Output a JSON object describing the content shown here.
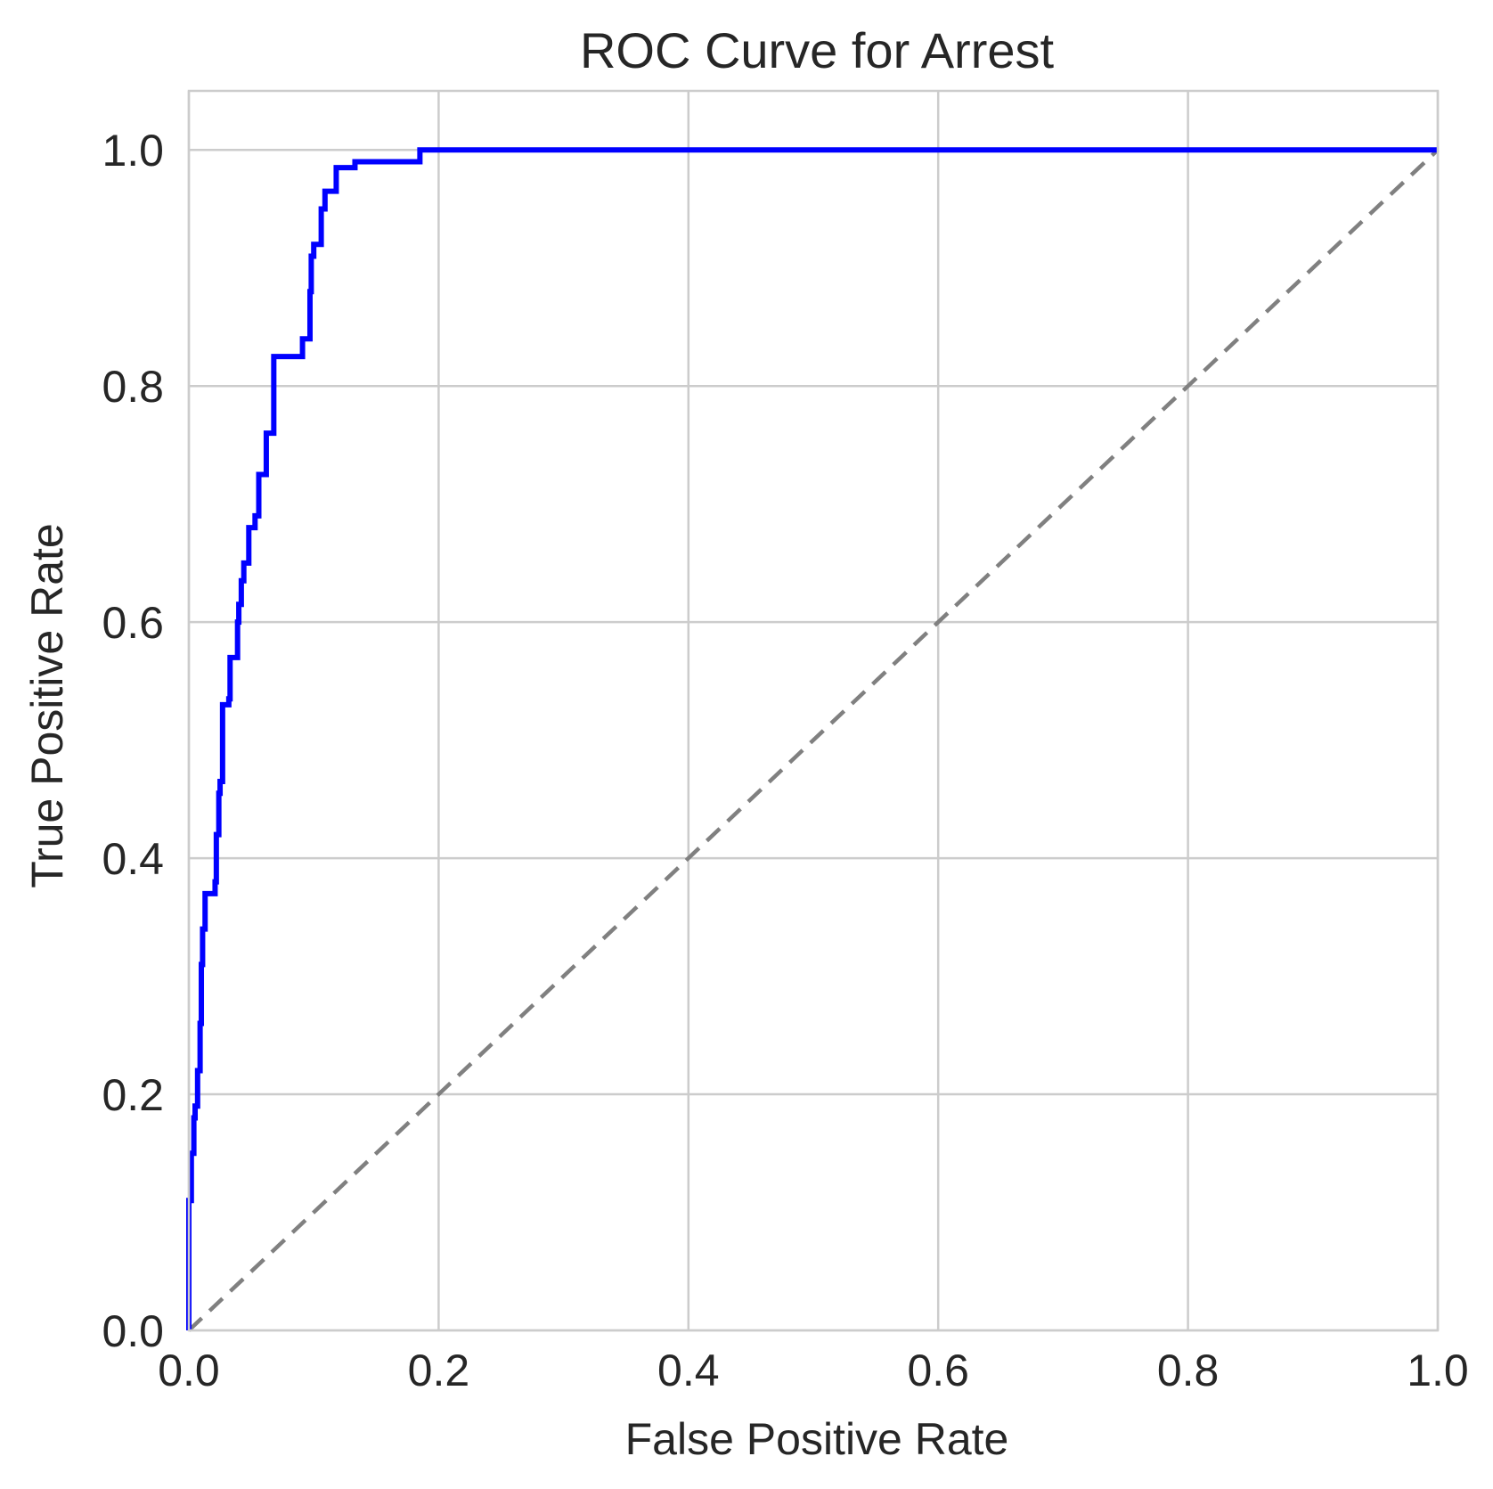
{
  "chart_data": {
    "type": "line",
    "title": "ROC Curve for Arrest",
    "xlabel": "False Positive Rate",
    "ylabel": "True Positive Rate",
    "xlim": [
      0.0,
      1.0
    ],
    "ylim": [
      0.0,
      1.05
    ],
    "xticks": [
      "0.0",
      "0.2",
      "0.4",
      "0.6",
      "0.8",
      "1.0"
    ],
    "yticks": [
      "0.0",
      "0.2",
      "0.4",
      "0.6",
      "0.8",
      "1.0"
    ],
    "grid": true,
    "series": [
      {
        "color": "#0000ff",
        "style": "solid",
        "x": [
          0.0,
          0.0,
          0.002,
          0.002,
          0.004,
          0.004,
          0.005,
          0.005,
          0.007,
          0.007,
          0.009,
          0.009,
          0.01,
          0.01,
          0.011,
          0.011,
          0.013,
          0.013,
          0.021,
          0.021,
          0.022,
          0.022,
          0.024,
          0.024,
          0.025,
          0.025,
          0.027,
          0.027,
          0.032,
          0.032,
          0.033,
          0.033,
          0.039,
          0.039,
          0.04,
          0.04,
          0.042,
          0.042,
          0.044,
          0.044,
          0.048,
          0.048,
          0.053,
          0.053,
          0.056,
          0.056,
          0.062,
          0.062,
          0.068,
          0.068,
          0.091,
          0.091,
          0.097,
          0.097,
          0.098,
          0.098,
          0.1,
          0.1,
          0.106,
          0.106,
          0.109,
          0.109,
          0.118,
          0.118,
          0.133,
          0.133,
          0.185,
          0.185,
          0.189,
          0.189,
          1.0
        ],
        "y": [
          0.0,
          0.11,
          0.11,
          0.15,
          0.15,
          0.18,
          0.18,
          0.19,
          0.19,
          0.22,
          0.22,
          0.26,
          0.26,
          0.31,
          0.31,
          0.34,
          0.34,
          0.37,
          0.37,
          0.38,
          0.38,
          0.42,
          0.42,
          0.455,
          0.455,
          0.465,
          0.465,
          0.53,
          0.53,
          0.535,
          0.535,
          0.57,
          0.57,
          0.6,
          0.6,
          0.615,
          0.615,
          0.635,
          0.635,
          0.65,
          0.65,
          0.68,
          0.68,
          0.69,
          0.69,
          0.725,
          0.725,
          0.76,
          0.76,
          0.825,
          0.825,
          0.84,
          0.84,
          0.88,
          0.88,
          0.91,
          0.91,
          0.92,
          0.92,
          0.95,
          0.95,
          0.965,
          0.965,
          0.985,
          0.985,
          0.99,
          0.99,
          1.0,
          1.0,
          1.0,
          1.0
        ]
      },
      {
        "color": "#808080",
        "style": "dashed",
        "x": [
          0.0,
          1.0
        ],
        "y": [
          0.0,
          1.0
        ]
      }
    ]
  }
}
